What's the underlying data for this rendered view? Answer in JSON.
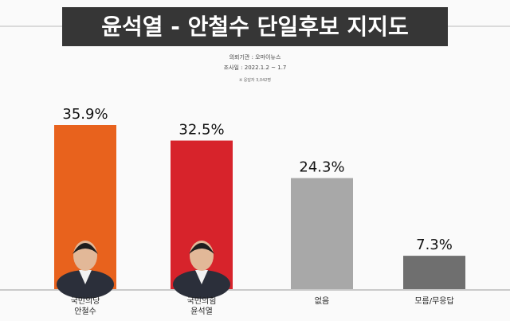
{
  "chart_data": {
    "type": "bar",
    "title": "윤석열 - 안철수 단일후보 지지도",
    "notes": [
      "의뢰기관 : 오마이뉴스",
      "조사일 : 2022.1.2 ~ 1.7",
      "※ 응답자 3,042명"
    ],
    "categories": [
      "국민의당\n안철수",
      "국민의힘\n윤석열",
      "없음",
      "모름/무응답"
    ],
    "values": [
      35.9,
      32.5,
      24.3,
      7.3
    ],
    "value_labels": [
      "35.9%",
      "32.5%",
      "24.3%",
      "7.3%"
    ],
    "colors": [
      "#e8621d",
      "#d7232b",
      "#a8a8a8",
      "#6f6f6f"
    ]
  }
}
